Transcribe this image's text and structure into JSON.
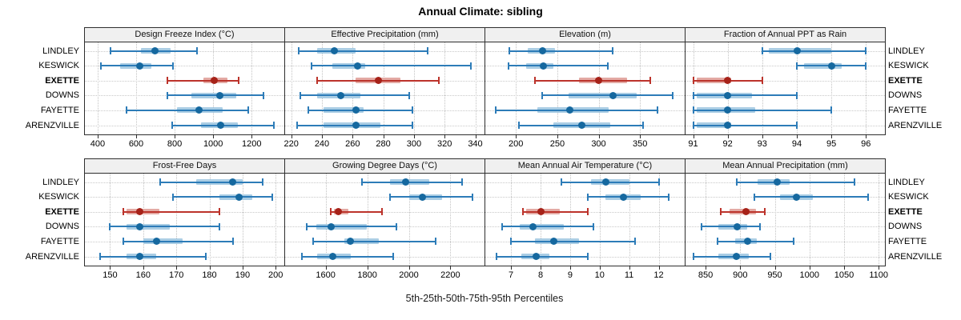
{
  "figure": {
    "title": "Annual Climate: sibling",
    "caption": "5th-25th-50th-75th-95th Percentiles"
  },
  "sites": [
    "LINDLEY",
    "KESWICK",
    "EXETTE",
    "DOWNS",
    "FAYETTE",
    "ARENZVILLE"
  ],
  "highlight_site": "EXETTE",
  "percentile_labels": [
    "5th",
    "25th",
    "50th",
    "75th",
    "95th"
  ],
  "colors": {
    "blue_line": "#2d7cb8",
    "blue_band": "#aacde4",
    "blue_dot": "#15689f",
    "red_line": "#bc332b",
    "red_band": "#e3aaa4",
    "red_dot": "#a62219",
    "grid": "#c6c6c6",
    "panel_border": "#2e2e2e",
    "header_bg": "#f0f0f0"
  },
  "chart_data": [
    {
      "type": "percentile-interval",
      "title": "Design Freeze Index (°C)",
      "grid_row": 0,
      "grid_col": 0,
      "axis": {
        "min": 334,
        "max": 1369,
        "ticks": [
          400,
          600,
          800,
          1000,
          1200
        ]
      },
      "series": [
        {
          "site": "LINDLEY",
          "values": [
            465,
            625,
            697,
            777,
            915
          ]
        },
        {
          "site": "KESWICK",
          "values": [
            415,
            515,
            620,
            680,
            790
          ]
        },
        {
          "site": "EXETTE",
          "values": [
            760,
            950,
            1005,
            1075,
            1130
          ]
        },
        {
          "site": "DOWNS",
          "values": [
            760,
            885,
            1035,
            1120,
            1260
          ]
        },
        {
          "site": "FAYETTE",
          "values": [
            550,
            810,
            925,
            1050,
            1180
          ]
        },
        {
          "site": "ARENZVILLE",
          "values": [
            785,
            935,
            1040,
            1130,
            1315
          ]
        }
      ]
    },
    {
      "type": "percentile-interval",
      "title": "Effective Precipitation (mm)",
      "grid_row": 0,
      "grid_col": 1,
      "axis": {
        "min": 216,
        "max": 346,
        "ticks": [
          220,
          240,
          260,
          280,
          300,
          320,
          340
        ]
      },
      "series": [
        {
          "site": "LINDLEY",
          "values": [
            225,
            237,
            248,
            262,
            309
          ]
        },
        {
          "site": "KESWICK",
          "values": [
            233,
            247,
            263,
            268,
            337
          ]
        },
        {
          "site": "EXETTE",
          "values": [
            237,
            262,
            277,
            291,
            316
          ]
        },
        {
          "site": "DOWNS",
          "values": [
            226,
            237,
            252,
            265,
            297
          ]
        },
        {
          "site": "FAYETTE",
          "values": [
            231,
            241,
            262,
            267,
            299
          ]
        },
        {
          "site": "ARENZVILLE",
          "values": [
            224,
            241,
            262,
            278,
            299
          ]
        }
      ]
    },
    {
      "type": "percentile-interval",
      "title": "Elevation (m)",
      "grid_row": 0,
      "grid_col": 2,
      "axis": {
        "min": 163,
        "max": 404,
        "ticks": [
          200,
          250,
          300,
          350
        ]
      },
      "series": [
        {
          "site": "LINDLEY",
          "values": [
            192,
            214,
            232,
            247,
            317
          ]
        },
        {
          "site": "KESWICK",
          "values": [
            191,
            212,
            233,
            245,
            311
          ]
        },
        {
          "site": "EXETTE",
          "values": [
            223,
            276,
            300,
            334,
            362
          ]
        },
        {
          "site": "DOWNS",
          "values": [
            232,
            264,
            317,
            346,
            389
          ]
        },
        {
          "site": "FAYETTE",
          "values": [
            176,
            226,
            265,
            312,
            371
          ]
        },
        {
          "site": "ARENZVILLE",
          "values": [
            204,
            245,
            280,
            314,
            354
          ]
        }
      ]
    },
    {
      "type": "percentile-interval",
      "title": "Fraction of Annual PPT as Rain",
      "grid_row": 0,
      "grid_col": 3,
      "axis": {
        "min": 90.78,
        "max": 96.55,
        "ticks": [
          91,
          92,
          93,
          94,
          95,
          96
        ]
      },
      "series": [
        {
          "site": "LINDLEY",
          "values": [
            93,
            93.2,
            94,
            95,
            96
          ]
        },
        {
          "site": "KESWICK",
          "values": [
            94,
            94.2,
            95,
            95.3,
            96
          ]
        },
        {
          "site": "EXETTE",
          "values": [
            91,
            91.1,
            92,
            92.1,
            93
          ]
        },
        {
          "site": "DOWNS",
          "values": [
            91,
            91.1,
            92,
            92.7,
            94
          ]
        },
        {
          "site": "FAYETTE",
          "values": [
            91,
            91.1,
            92,
            92.8,
            95
          ]
        },
        {
          "site": "ARENZVILLE",
          "values": [
            91,
            91.1,
            92,
            92.1,
            94
          ]
        }
      ]
    },
    {
      "type": "percentile-interval",
      "title": "Frost-Free Days",
      "grid_row": 1,
      "grid_col": 0,
      "axis": {
        "min": 142.4,
        "max": 202.6,
        "ticks": [
          150,
          160,
          170,
          180,
          190,
          200
        ]
      },
      "series": [
        {
          "site": "LINDLEY",
          "values": [
            165,
            176,
            187,
            190,
            196
          ]
        },
        {
          "site": "KESWICK",
          "values": [
            169,
            183,
            189,
            193,
            199
          ]
        },
        {
          "site": "EXETTE",
          "values": [
            154,
            155,
            159,
            165,
            183
          ]
        },
        {
          "site": "DOWNS",
          "values": [
            150,
            155,
            159,
            168,
            183
          ]
        },
        {
          "site": "FAYETTE",
          "values": [
            154,
            160,
            164,
            172,
            187
          ]
        },
        {
          "site": "ARENZVILLE",
          "values": [
            147,
            155,
            159,
            164,
            179
          ]
        }
      ]
    },
    {
      "type": "percentile-interval",
      "title": "Growing Degree Days (°C)",
      "grid_row": 1,
      "grid_col": 1,
      "axis": {
        "min": 1405,
        "max": 2364,
        "ticks": [
          1600,
          1800,
          2000,
          2200
        ]
      },
      "series": [
        {
          "site": "LINDLEY",
          "values": [
            1775,
            1910,
            1985,
            2100,
            2255
          ]
        },
        {
          "site": "KESWICK",
          "values": [
            1910,
            2000,
            2065,
            2160,
            2305
          ]
        },
        {
          "site": "EXETTE",
          "values": [
            1625,
            1640,
            1660,
            1710,
            1870
          ]
        },
        {
          "site": "DOWNS",
          "values": [
            1510,
            1555,
            1625,
            1800,
            1940
          ]
        },
        {
          "site": "FAYETTE",
          "values": [
            1540,
            1690,
            1720,
            1855,
            2130
          ]
        },
        {
          "site": "ARENZVILLE",
          "values": [
            1485,
            1560,
            1635,
            1720,
            1925
          ]
        }
      ]
    },
    {
      "type": "percentile-interval",
      "title": "Mean Annual Air Temperature (°C)",
      "grid_row": 1,
      "grid_col": 2,
      "axis": {
        "min": 6.13,
        "max": 12.88,
        "ticks": [
          7,
          8,
          9,
          10,
          11,
          12
        ]
      },
      "series": [
        {
          "site": "LINDLEY",
          "values": [
            8.7,
            9.7,
            10.2,
            11.0,
            12.0
          ]
        },
        {
          "site": "KESWICK",
          "values": [
            9.6,
            10.2,
            10.8,
            11.4,
            12.35
          ]
        },
        {
          "site": "EXETTE",
          "values": [
            7.4,
            7.5,
            8.0,
            8.65,
            9.6
          ]
        },
        {
          "site": "DOWNS",
          "values": [
            6.7,
            7.3,
            7.75,
            8.8,
            9.8
          ]
        },
        {
          "site": "FAYETTE",
          "values": [
            7.0,
            7.8,
            8.45,
            9.3,
            11.2
          ]
        },
        {
          "site": "ARENZVILLE",
          "values": [
            6.5,
            7.35,
            7.85,
            8.3,
            9.6
          ]
        }
      ]
    },
    {
      "type": "percentile-interval",
      "title": "Mean Annual Precipitation (mm)",
      "grid_row": 1,
      "grid_col": 3,
      "axis": {
        "min": 821,
        "max": 1109,
        "ticks": [
          850,
          900,
          950,
          1000,
          1050,
          1100
        ]
      },
      "series": [
        {
          "site": "LINDLEY",
          "values": [
            895,
            925,
            953,
            972,
            1065
          ]
        },
        {
          "site": "KESWICK",
          "values": [
            920,
            958,
            981,
            1005,
            1085
          ]
        },
        {
          "site": "EXETTE",
          "values": [
            872,
            885,
            908,
            923,
            936
          ]
        },
        {
          "site": "DOWNS",
          "values": [
            844,
            868,
            896,
            910,
            928
          ]
        },
        {
          "site": "FAYETTE",
          "values": [
            867,
            893,
            911,
            924,
            977
          ]
        },
        {
          "site": "ARENZVILLE",
          "values": [
            833,
            868,
            894,
            913,
            943
          ]
        }
      ]
    }
  ]
}
